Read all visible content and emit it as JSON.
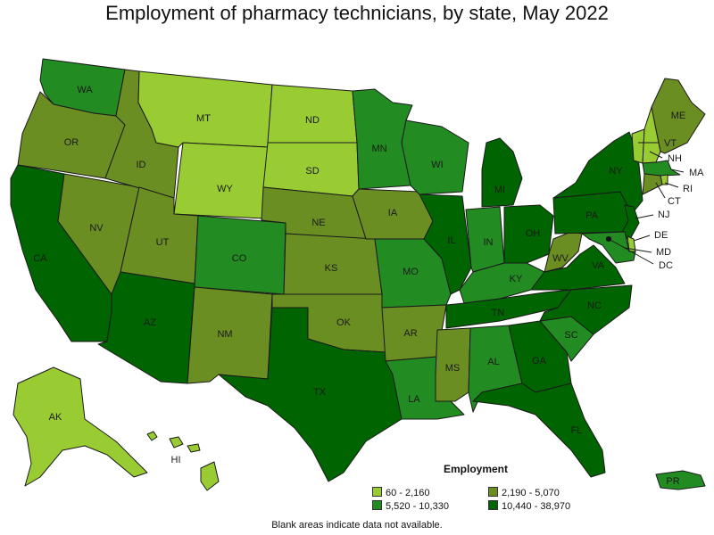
{
  "title": "Employment of pharmacy technicians, by state, May 2022",
  "note": "Blank areas indicate data not available.",
  "legend": {
    "title": "Employment",
    "bins": [
      {
        "label": "60 - 2,160",
        "color": "#99cc33"
      },
      {
        "label": "2,190 - 5,070",
        "color": "#6b8e23"
      },
      {
        "label": "5,520 - 10,330",
        "color": "#228b22"
      },
      {
        "label": "10,440 - 38,970",
        "color": "#006400"
      }
    ]
  },
  "states": {
    "WA": {
      "label": "WA",
      "bin": 2
    },
    "OR": {
      "label": "OR",
      "bin": 1
    },
    "CA": {
      "label": "CA",
      "bin": 3
    },
    "NV": {
      "label": "NV",
      "bin": 1
    },
    "ID": {
      "label": "ID",
      "bin": 1
    },
    "MT": {
      "label": "MT",
      "bin": 0
    },
    "WY": {
      "label": "WY",
      "bin": 0
    },
    "UT": {
      "label": "UT",
      "bin": 1
    },
    "AZ": {
      "label": "AZ",
      "bin": 3
    },
    "CO": {
      "label": "CO",
      "bin": 2
    },
    "NM": {
      "label": "NM",
      "bin": 1
    },
    "ND": {
      "label": "ND",
      "bin": 0
    },
    "SD": {
      "label": "SD",
      "bin": 0
    },
    "NE": {
      "label": "NE",
      "bin": 1
    },
    "KS": {
      "label": "KS",
      "bin": 1
    },
    "OK": {
      "label": "OK",
      "bin": 1
    },
    "TX": {
      "label": "TX",
      "bin": 3
    },
    "MN": {
      "label": "MN",
      "bin": 2
    },
    "IA": {
      "label": "IA",
      "bin": 1
    },
    "MO": {
      "label": "MO",
      "bin": 2
    },
    "AR": {
      "label": "AR",
      "bin": 1
    },
    "LA": {
      "label": "LA",
      "bin": 2
    },
    "WI": {
      "label": "WI",
      "bin": 2
    },
    "IL": {
      "label": "IL",
      "bin": 3
    },
    "MI": {
      "label": "MI",
      "bin": 3
    },
    "IN": {
      "label": "IN",
      "bin": 2
    },
    "OH": {
      "label": "OH",
      "bin": 3
    },
    "KY": {
      "label": "KY",
      "bin": 2
    },
    "TN": {
      "label": "TN",
      "bin": 3
    },
    "MS": {
      "label": "MS",
      "bin": 1
    },
    "AL": {
      "label": "AL",
      "bin": 2
    },
    "GA": {
      "label": "GA",
      "bin": 3
    },
    "FL": {
      "label": "FL",
      "bin": 3
    },
    "SC": {
      "label": "SC",
      "bin": 2
    },
    "NC": {
      "label": "NC",
      "bin": 3
    },
    "VA": {
      "label": "VA",
      "bin": 3
    },
    "WV": {
      "label": "WV",
      "bin": 1
    },
    "PA": {
      "label": "PA",
      "bin": 3
    },
    "NY": {
      "label": "NY",
      "bin": 3
    },
    "VT": {
      "label": "VT",
      "bin": 0
    },
    "NH": {
      "label": "NH",
      "bin": 0
    },
    "ME": {
      "label": "ME",
      "bin": 1
    },
    "MA": {
      "label": "MA",
      "bin": 2
    },
    "RI": {
      "label": "RI",
      "bin": 0
    },
    "CT": {
      "label": "CT",
      "bin": 1
    },
    "NJ": {
      "label": "NJ",
      "bin": 3
    },
    "DE": {
      "label": "DE",
      "bin": 0
    },
    "MD": {
      "label": "MD",
      "bin": 2
    },
    "DC": {
      "label": "DC",
      "bin": 0
    },
    "AK": {
      "label": "AK",
      "bin": 0
    },
    "HI": {
      "label": "HI",
      "bin": 0
    },
    "PR": {
      "label": "PR",
      "bin": 2
    }
  }
}
